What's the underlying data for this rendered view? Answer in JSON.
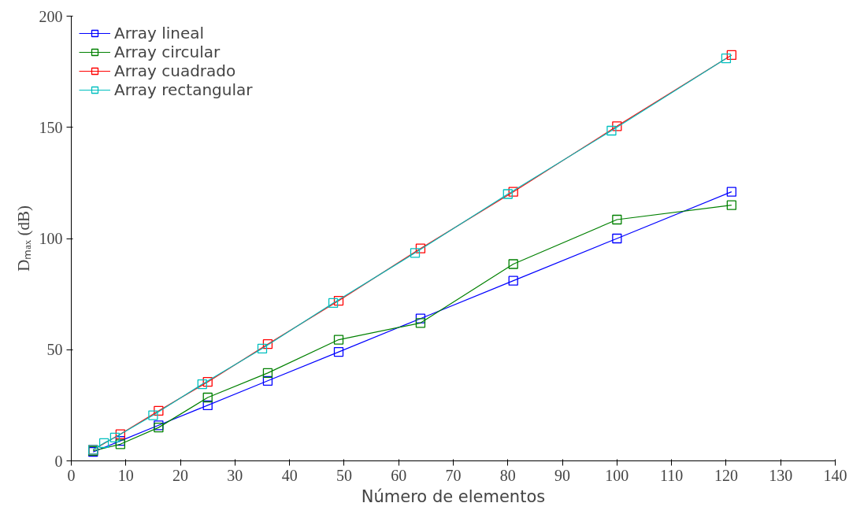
{
  "chart_data": {
    "type": "line",
    "xlabel": "Número de elementos",
    "ylabel": "Dₘₐₓ (dB)",
    "xlim": [
      0,
      140
    ],
    "ylim": [
      0,
      200
    ],
    "xticks": [
      0,
      10,
      20,
      30,
      40,
      50,
      60,
      70,
      80,
      90,
      100,
      110,
      120,
      130,
      140
    ],
    "yticks": [
      0,
      50,
      100,
      150,
      200
    ],
    "grid": false,
    "legend": "top left",
    "marker": "square",
    "line_style": "solid",
    "series": [
      {
        "name": "Array lineal",
        "color": "#0000ff",
        "x": [
          4,
          9,
          16,
          25,
          36,
          49,
          64,
          81,
          100,
          121
        ],
        "values": [
          4,
          9,
          16,
          25,
          36,
          49,
          64,
          81,
          100,
          121
        ]
      },
      {
        "name": "Array circular",
        "color": "#008000",
        "x": [
          4,
          9,
          16,
          25,
          36,
          49,
          64,
          81,
          100,
          121
        ],
        "values": [
          4.5,
          7.5,
          15,
          28.5,
          39.5,
          54.5,
          62,
          88.5,
          108.5,
          115
        ]
      },
      {
        "name": "Array cuadrado",
        "color": "#ff0000",
        "x": [
          4,
          9,
          16,
          25,
          36,
          49,
          64,
          81,
          100,
          121
        ],
        "values": [
          5,
          12,
          22.5,
          35.5,
          52.5,
          72,
          95.5,
          121,
          150.5,
          182.5
        ]
      },
      {
        "name": "Array rectangular",
        "color": "#00bfbf",
        "x": [
          4,
          6,
          8,
          15,
          24,
          35,
          48,
          63,
          80,
          99,
          120
        ],
        "values": [
          5,
          8,
          10.5,
          20.5,
          34.5,
          50.5,
          71,
          93.5,
          120,
          148.5,
          181
        ]
      }
    ]
  }
}
